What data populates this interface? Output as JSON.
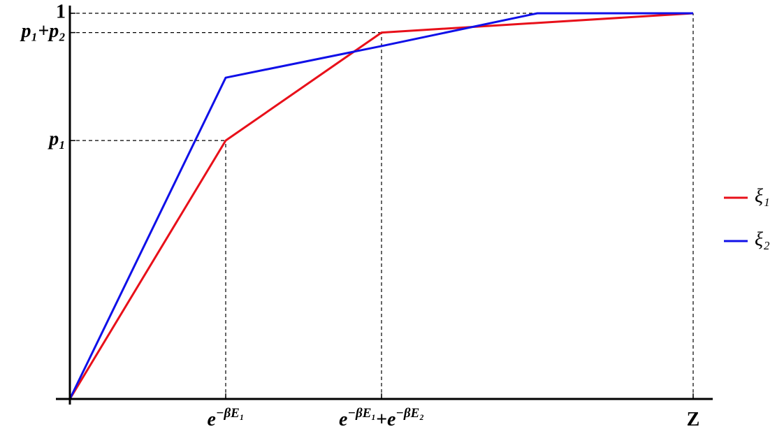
{
  "chart_data": {
    "type": "line",
    "series": [
      {
        "name": "ξ₁",
        "color": "#e8101a",
        "x": [
          0,
          0.25,
          0.5,
          1
        ],
        "values": [
          0,
          0.67,
          0.95,
          1
        ]
      },
      {
        "name": "ξ₂",
        "color": "#1010e8",
        "x": [
          0,
          0.25,
          0.5,
          0.75,
          1
        ],
        "values": [
          0,
          0.833,
          0.915,
          1,
          1
        ]
      }
    ],
    "xlim": [
      0,
      1.03
    ],
    "ylim": [
      0,
      1
    ],
    "xticks": [
      {
        "value": 0.25,
        "label": [
          "e",
          "−βE₁"
        ]
      },
      {
        "value": 0.5,
        "label": [
          "e",
          "−βE₁",
          "+e",
          "−βE₂"
        ]
      },
      {
        "value": 1,
        "label": [
          "Z"
        ]
      }
    ],
    "yticks": [
      {
        "value": 0.67,
        "label": "p₁"
      },
      {
        "value": 0.95,
        "label": "p₁+p₂"
      },
      1
    ],
    "legend": "right"
  }
}
